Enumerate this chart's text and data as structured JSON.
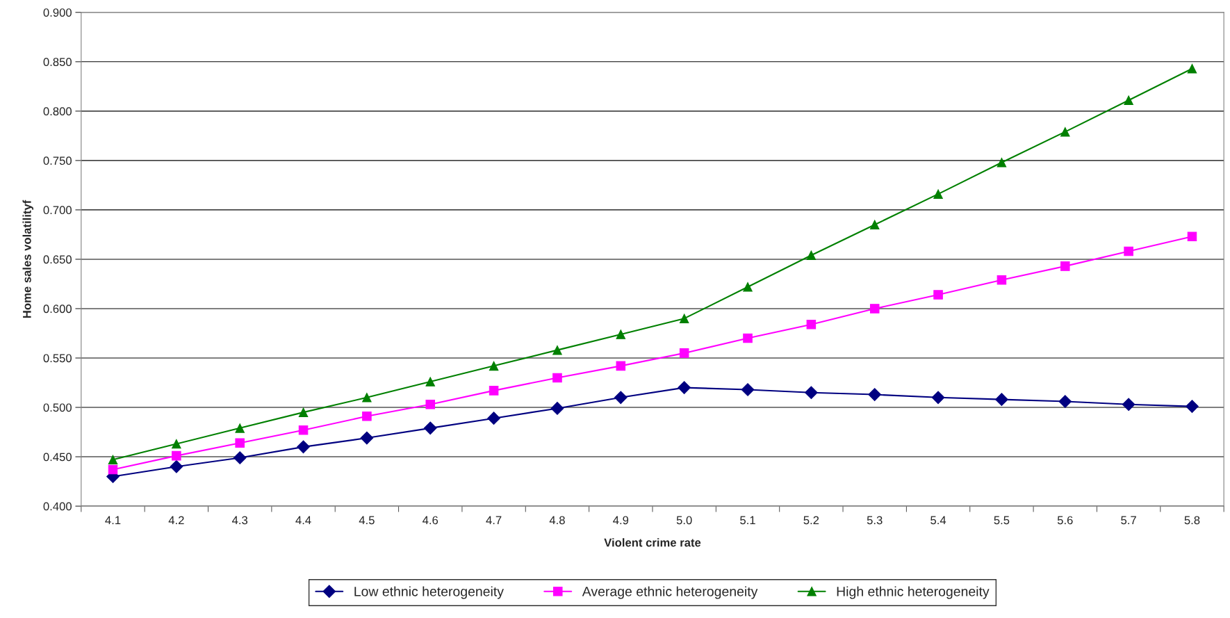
{
  "chart_data": {
    "type": "line",
    "xlabel": "Violent crime rate",
    "ylabel": "Home sales volatilityf",
    "categories": [
      "4.1",
      "4.2",
      "4.3",
      "4.4",
      "4.5",
      "4.6",
      "4.7",
      "4.8",
      "4.9",
      "5.0",
      "5.1",
      "5.2",
      "5.3",
      "5.4",
      "5.5",
      "5.6",
      "5.7",
      "5.8"
    ],
    "series": [
      {
        "name": "Low ethnic heterogeneity",
        "color": "#000080",
        "marker": "diamond",
        "values": [
          0.43,
          0.44,
          0.449,
          0.46,
          0.469,
          0.479,
          0.489,
          0.499,
          0.51,
          0.52,
          0.518,
          0.515,
          0.513,
          0.51,
          0.508,
          0.506,
          0.503,
          0.501
        ]
      },
      {
        "name": "Average ethnic heterogeneity",
        "color": "#ff00ff",
        "marker": "square",
        "values": [
          0.437,
          0.451,
          0.464,
          0.477,
          0.491,
          0.503,
          0.517,
          0.53,
          0.542,
          0.555,
          0.57,
          0.584,
          0.6,
          0.614,
          0.629,
          0.643,
          0.658,
          0.673
        ]
      },
      {
        "name": "High ethnic heterogeneity",
        "color": "#008000",
        "marker": "triangle",
        "values": [
          0.447,
          0.463,
          0.479,
          0.495,
          0.51,
          0.526,
          0.542,
          0.558,
          0.574,
          0.59,
          0.622,
          0.654,
          0.685,
          0.716,
          0.748,
          0.779,
          0.811,
          0.843
        ]
      }
    ],
    "ylim": [
      0.4,
      0.9
    ],
    "yticks": [
      {
        "value": 0.4,
        "label": "0.400"
      },
      {
        "value": 0.45,
        "label": "0.450"
      },
      {
        "value": 0.5,
        "label": "0.500"
      },
      {
        "value": 0.55,
        "label": "0.550"
      },
      {
        "value": 0.6,
        "label": "0.600"
      },
      {
        "value": 0.65,
        "label": "0.650"
      },
      {
        "value": 0.7,
        "label": "0.700"
      },
      {
        "value": 0.75,
        "label": "0.750"
      },
      {
        "value": 0.8,
        "label": "0.800"
      },
      {
        "value": 0.85,
        "label": "0.850"
      },
      {
        "value": 0.9,
        "label": "0.900"
      }
    ],
    "grid": "y",
    "legend": "bottom",
    "line_style": "solid"
  }
}
